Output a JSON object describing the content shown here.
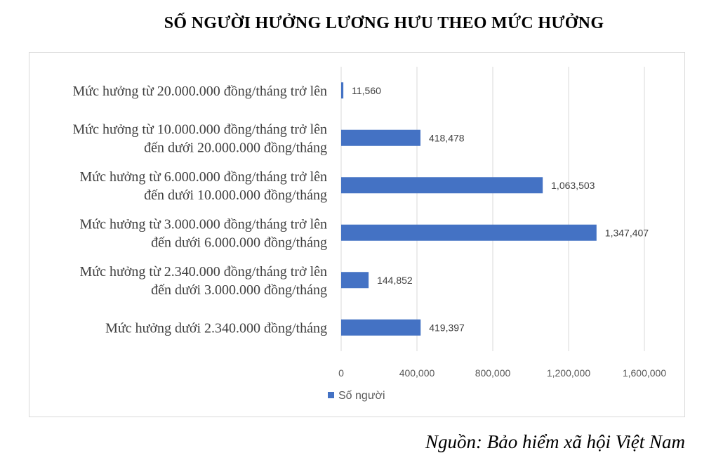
{
  "chart_data": {
    "type": "bar",
    "orientation": "horizontal",
    "title": "SỐ NGƯỜI HƯỞNG LƯƠNG HƯU THEO MỨC HƯỞNG",
    "categories": [
      [
        "Mức hưởng từ 20.000.000 đồng/tháng trở lên"
      ],
      [
        "Mức hưởng từ 10.000.000 đồng/tháng trở lên",
        "đến dưới 20.000.000 đồng/tháng"
      ],
      [
        "Mức hưởng từ 6.000.000 đồng/tháng trở lên",
        "đến dưới 10.000.000 đồng/tháng"
      ],
      [
        "Mức hưởng từ 3.000.000 đồng/tháng trở lên",
        "đến dưới 6.000.000 đồng/tháng"
      ],
      [
        "Mức hưởng từ 2.340.000 đồng/tháng trở lên",
        "đến dưới 3.000.000 đồng/tháng"
      ],
      [
        "Mức hưởng dưới 2.340.000 đồng/tháng"
      ]
    ],
    "series": [
      {
        "name": "Số người",
        "values": [
          11560,
          418478,
          1063503,
          1347407,
          144852,
          419397
        ],
        "value_labels": [
          "11,560",
          "418,478",
          "1,063,503",
          "1,347,407",
          "144,852",
          "419,397"
        ]
      }
    ],
    "xlim": [
      0,
      1600000
    ],
    "x_ticks": [
      0,
      400000,
      800000,
      1200000,
      1600000
    ],
    "x_tick_labels": [
      "0",
      "400,000",
      "800,000",
      "1,200,000",
      "1,600,000"
    ],
    "grid": true,
    "legend_position": "bottom-left",
    "bar_color": "#4472c4",
    "grid_color": "#d9d9d9"
  },
  "source": "Nguồn: Bảo hiểm xã hội Việt Nam"
}
